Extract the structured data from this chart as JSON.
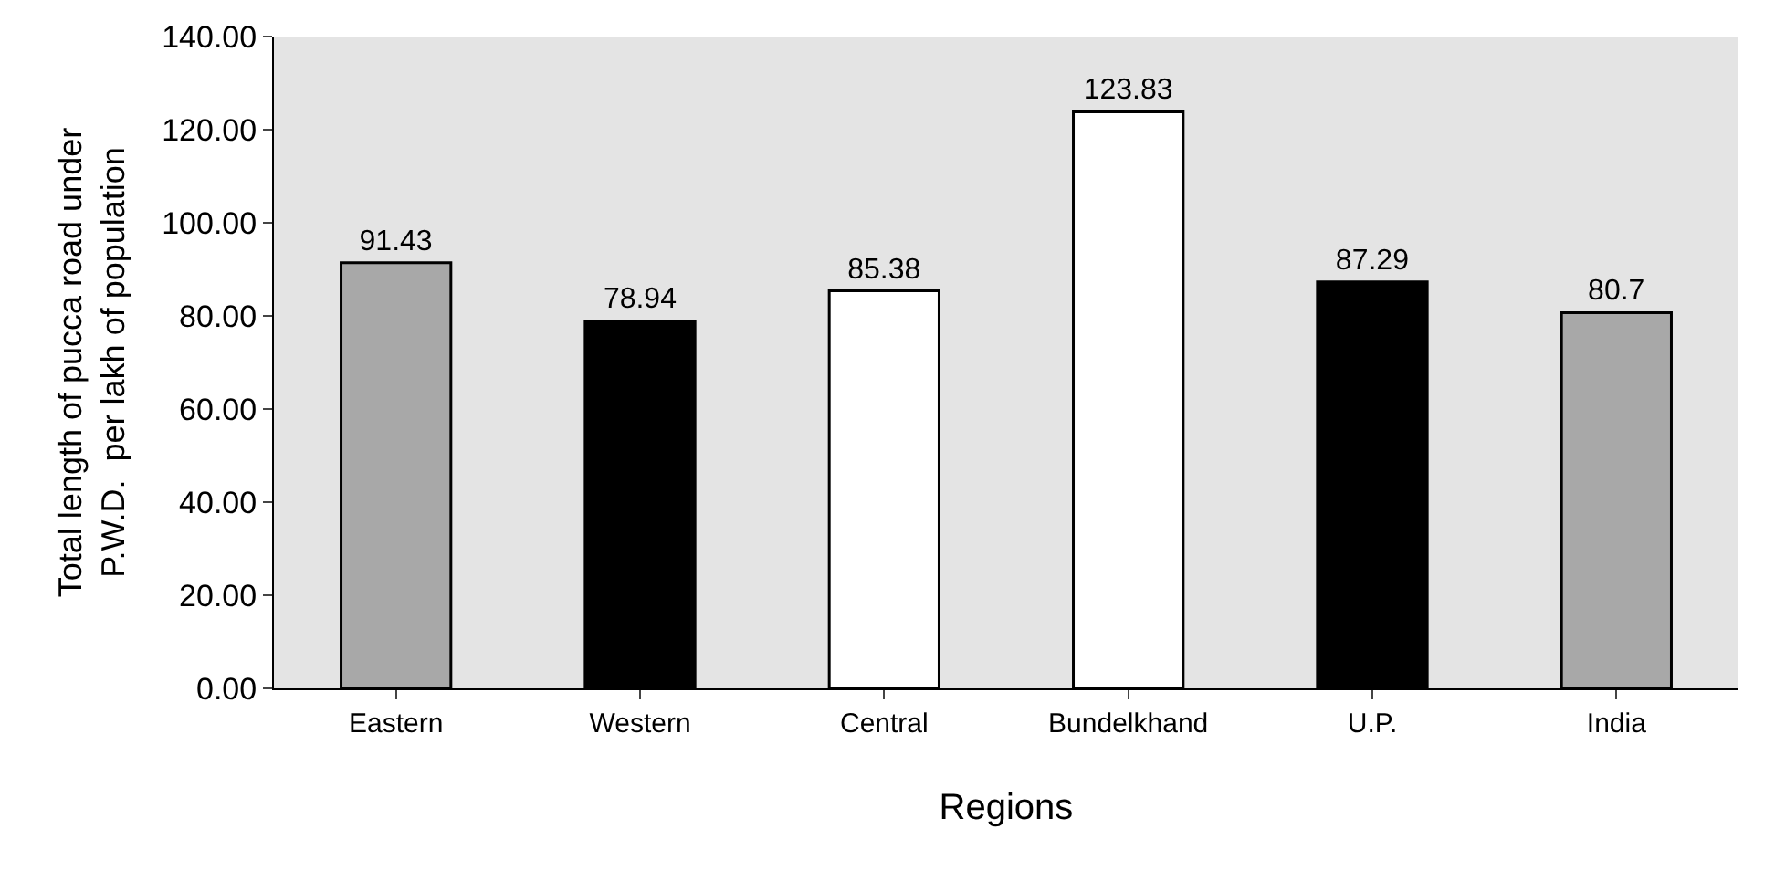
{
  "chart_data": {
    "type": "bar",
    "xlabel": "Regions",
    "ylabel": "Total length of pucca road under\nP.W.D.  per lakh of population",
    "categories": [
      "Eastern",
      "Western",
      "Central",
      "Bundelkhand",
      "U.P.",
      "India"
    ],
    "values": [
      91.43,
      78.94,
      85.38,
      123.83,
      87.29,
      80.7
    ],
    "colors": [
      "#a8a8a8",
      "#000000",
      "#ffffff",
      "#ffffff",
      "#000000",
      "#a8a8a8"
    ],
    "value_labels": [
      "91.43",
      "78.94",
      "85.38",
      "123.83",
      "87.29",
      "80.7"
    ],
    "ylim": [
      0,
      140
    ],
    "yticks": [
      {
        "value": 0,
        "label": "0.00"
      },
      {
        "value": 20,
        "label": "20.00"
      },
      {
        "value": 40,
        "label": "40.00"
      },
      {
        "value": 60,
        "label": "60.00"
      },
      {
        "value": 80,
        "label": "80.00"
      },
      {
        "value": 100,
        "label": "100.00"
      },
      {
        "value": 120,
        "label": "120.00"
      },
      {
        "value": 140,
        "label": "140.00"
      }
    ],
    "grid": false,
    "legend": false
  }
}
